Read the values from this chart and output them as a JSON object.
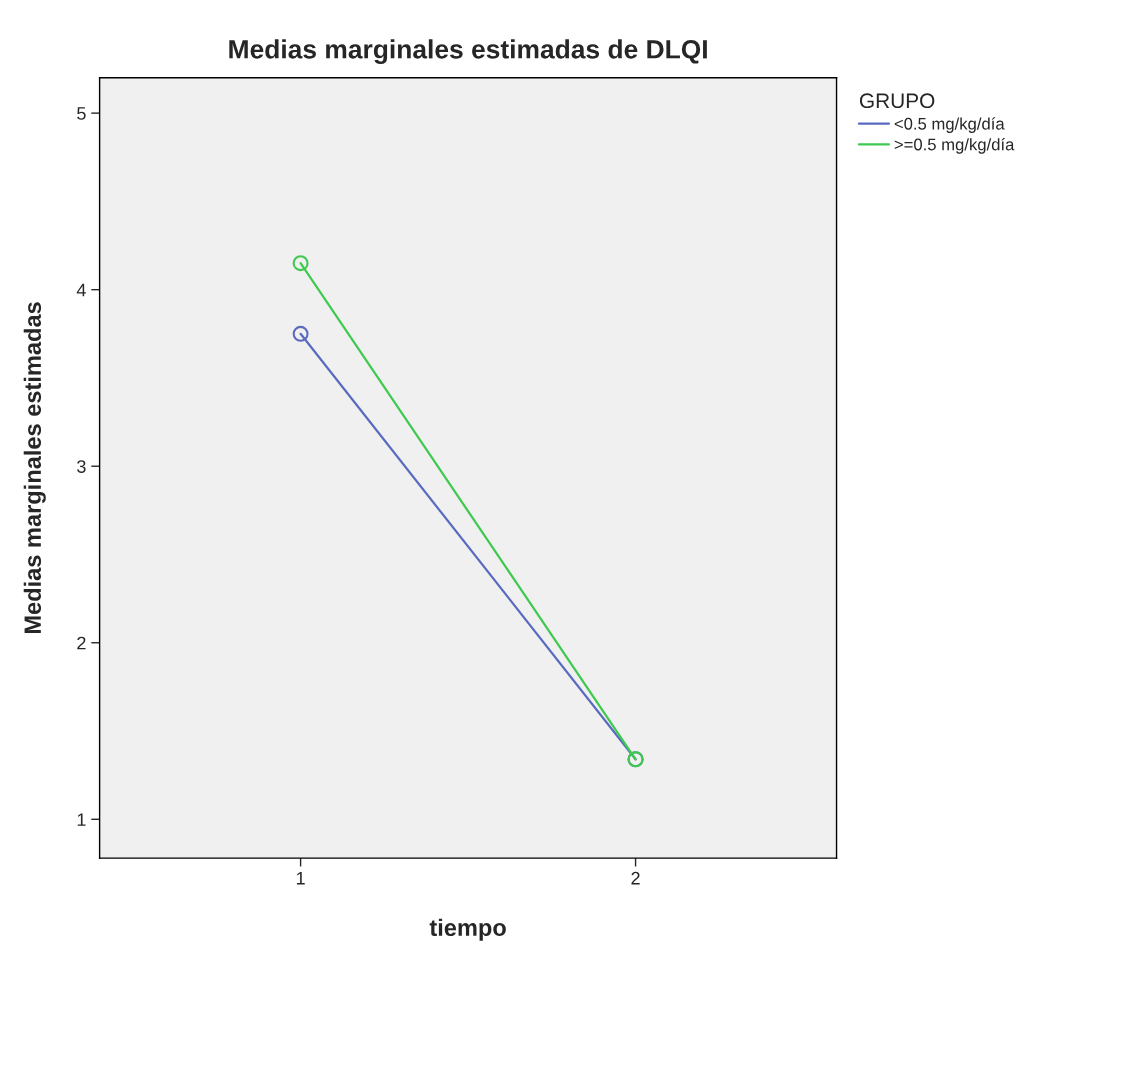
{
  "chart_data": {
    "type": "line",
    "title": "Medias marginales estimadas de DLQI",
    "xlabel": "tiempo",
    "ylabel": "Medias marginales estimadas",
    "legend_title": "GRUPO",
    "categories": [
      "1",
      "2"
    ],
    "series": [
      {
        "name": "<0.5 mg/kg/día",
        "color": "#5a6bbf",
        "values": [
          3.75,
          1.34
        ]
      },
      {
        "name": ">=0.5 mg/kg/día",
        "color": "#3fc94f",
        "values": [
          4.15,
          1.34
        ]
      }
    ],
    "ylim": [
      0.78,
      5.2
    ],
    "yticks": [
      1,
      2,
      3,
      4,
      5
    ],
    "marker": "circle",
    "line_style": "solid",
    "legend": "top right",
    "grid": false
  }
}
